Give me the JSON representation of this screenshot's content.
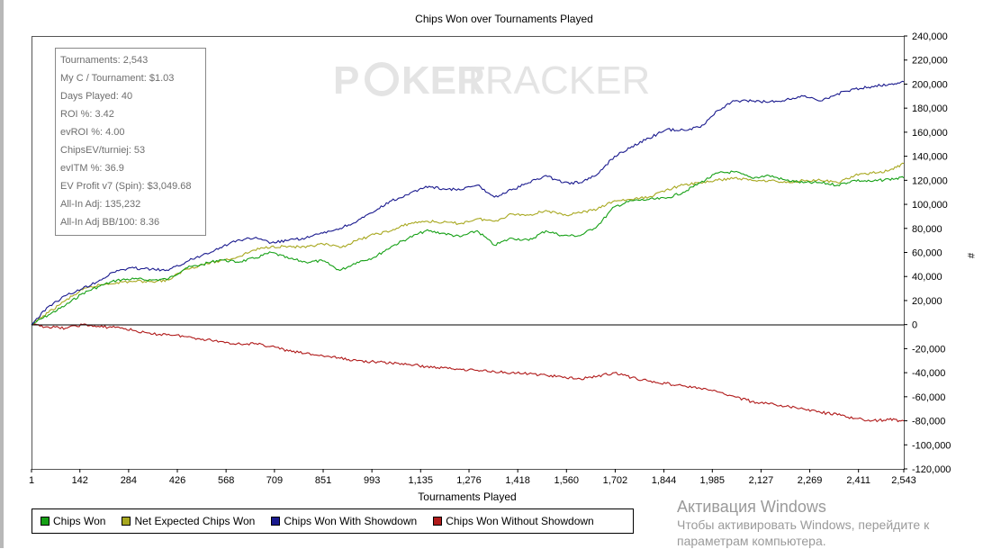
{
  "chart_data": {
    "type": "line",
    "title": "Chips Won over Tournaments Played",
    "xlabel": "Tournaments Played",
    "ylabel": "#",
    "xlim": [
      1,
      2543
    ],
    "ylim": [
      -120000,
      240000
    ],
    "x_ticks": [
      1,
      142,
      284,
      426,
      568,
      709,
      851,
      993,
      1135,
      1276,
      1418,
      1560,
      1702,
      1844,
      1985,
      2127,
      2269,
      2411,
      2543
    ],
    "x_tick_labels": [
      "1",
      "142",
      "284",
      "426",
      "568",
      "709",
      "851",
      "993",
      "1,135",
      "1,276",
      "1,418",
      "1,560",
      "1,702",
      "1,844",
      "1,985",
      "2,127",
      "2,269",
      "2,411",
      "2,543"
    ],
    "y_ticks": [
      240000,
      220000,
      200000,
      180000,
      160000,
      140000,
      120000,
      100000,
      80000,
      60000,
      40000,
      20000,
      0,
      -20000,
      -40000,
      -60000,
      -80000,
      -100000,
      -120000
    ],
    "y_tick_labels": [
      "240,000",
      "220,000",
      "200,000",
      "180,000",
      "160,000",
      "140,000",
      "120,000",
      "100,000",
      "80,000",
      "60,000",
      "40,000",
      "20,000",
      "0",
      "-20,000",
      "-40,000",
      "-60,000",
      "-80,000",
      "-100,000",
      "-120,000"
    ],
    "grid": false,
    "legend_position": "bottom",
    "series": [
      {
        "name": "Chips Won",
        "color": "#16a016",
        "x": [
          1,
          50,
          100,
          150,
          200,
          250,
          300,
          350,
          400,
          450,
          500,
          550,
          600,
          650,
          700,
          750,
          800,
          850,
          900,
          950,
          1000,
          1050,
          1100,
          1150,
          1200,
          1250,
          1300,
          1350,
          1400,
          1450,
          1500,
          1550,
          1600,
          1650,
          1700,
          1750,
          1800,
          1850,
          1900,
          1950,
          2000,
          2050,
          2100,
          2150,
          2200,
          2250,
          2300,
          2350,
          2400,
          2450,
          2500,
          2543
        ],
        "values": [
          0,
          8000,
          16000,
          26000,
          32000,
          37000,
          38000,
          37000,
          38000,
          47000,
          50000,
          54000,
          52000,
          55000,
          60000,
          55000,
          52000,
          53000,
          45000,
          52000,
          56000,
          65000,
          72000,
          78000,
          76000,
          73000,
          78000,
          66000,
          72000,
          70000,
          78000,
          74000,
          74000,
          82000,
          98000,
          103000,
          104000,
          105000,
          110000,
          118000,
          126000,
          127000,
          122000,
          124000,
          120000,
          118000,
          118000,
          116000,
          120000,
          119000,
          121000,
          122000
        ]
      },
      {
        "name": "Net Expected Chips Won",
        "color": "#a8a820",
        "x": [
          1,
          50,
          100,
          150,
          200,
          250,
          300,
          350,
          400,
          450,
          500,
          550,
          600,
          650,
          700,
          750,
          800,
          850,
          900,
          950,
          1000,
          1050,
          1100,
          1150,
          1200,
          1250,
          1300,
          1350,
          1400,
          1450,
          1500,
          1550,
          1600,
          1650,
          1700,
          1750,
          1800,
          1850,
          1900,
          1950,
          2000,
          2050,
          2100,
          2150,
          2200,
          2250,
          2300,
          2350,
          2400,
          2450,
          2500,
          2543
        ],
        "values": [
          0,
          10000,
          20000,
          29000,
          33000,
          35000,
          36000,
          36000,
          37000,
          46000,
          50000,
          53000,
          56000,
          62000,
          65000,
          65000,
          64000,
          67000,
          64000,
          70000,
          75000,
          78000,
          84000,
          86000,
          85000,
          84000,
          88000,
          86000,
          92000,
          91000,
          95000,
          91000,
          93000,
          96000,
          103000,
          104000,
          106000,
          112000,
          116000,
          118000,
          120000,
          122000,
          120000,
          120000,
          118000,
          120000,
          120000,
          118000,
          124000,
          126000,
          128000,
          134000
        ]
      },
      {
        "name": "Chips Won With Showdown",
        "color": "#1a1a8e",
        "x": [
          1,
          50,
          100,
          150,
          200,
          250,
          300,
          350,
          400,
          450,
          500,
          550,
          600,
          650,
          700,
          750,
          800,
          850,
          900,
          950,
          1000,
          1050,
          1100,
          1150,
          1200,
          1250,
          1300,
          1350,
          1400,
          1450,
          1500,
          1550,
          1600,
          1650,
          1700,
          1750,
          1800,
          1850,
          1900,
          1950,
          2000,
          2050,
          2100,
          2150,
          2200,
          2250,
          2300,
          2350,
          2400,
          2450,
          2500,
          2543
        ],
        "values": [
          0,
          15000,
          24000,
          30000,
          37000,
          45000,
          47000,
          46000,
          45000,
          52000,
          58000,
          64000,
          70000,
          72000,
          68000,
          70000,
          72000,
          76000,
          80000,
          86000,
          94000,
          103000,
          108000,
          115000,
          113000,
          112000,
          116000,
          106000,
          112000,
          118000,
          124000,
          118000,
          118000,
          125000,
          140000,
          148000,
          155000,
          162000,
          162000,
          164000,
          178000,
          186000,
          186000,
          185000,
          187000,
          190000,
          186000,
          192000,
          196000,
          198000,
          200000,
          202000
        ]
      },
      {
        "name": "Chips Won Without Showdown",
        "color": "#b01a1a",
        "x": [
          1,
          50,
          100,
          150,
          200,
          250,
          300,
          350,
          400,
          450,
          500,
          550,
          600,
          650,
          700,
          750,
          800,
          850,
          900,
          950,
          1000,
          1050,
          1100,
          1150,
          1200,
          1250,
          1300,
          1350,
          1400,
          1450,
          1500,
          1550,
          1600,
          1650,
          1700,
          1750,
          1800,
          1850,
          1900,
          1950,
          2000,
          2050,
          2100,
          2150,
          2200,
          2250,
          2300,
          2350,
          2400,
          2450,
          2500,
          2543
        ],
        "values": [
          0,
          -2000,
          -3000,
          0,
          -2000,
          -2000,
          -5000,
          -8000,
          -8000,
          -10000,
          -12000,
          -14000,
          -16000,
          -16000,
          -18000,
          -22000,
          -24000,
          -26000,
          -28000,
          -30000,
          -31000,
          -32000,
          -33000,
          -35000,
          -36000,
          -37000,
          -38000,
          -39000,
          -40000,
          -41000,
          -42000,
          -44000,
          -45000,
          -43000,
          -40000,
          -44000,
          -47000,
          -49000,
          -51000,
          -53000,
          -56000,
          -60000,
          -64000,
          -66000,
          -68000,
          -70000,
          -73000,
          -75000,
          -78000,
          -80000,
          -79000,
          -80000
        ]
      }
    ]
  },
  "stats": [
    "Tournaments: 2,543",
    "My C / Tournament: $1.03",
    "Days Played: 40",
    "ROI %: 3.42",
    "evROI %: 4.00",
    "ChipsEV/turniej: 53",
    "evITM %: 36.9",
    "EV Profit v7 (Spin): $3,049.68",
    "All-In Adj: 135,232",
    "All-In Adj BB/100: 8.36"
  ],
  "watermark": {
    "text_1": "P",
    "text_2": "KER",
    "text_3": "TRACKER"
  },
  "legend": [
    {
      "label": "Chips Won",
      "color": "#16a016"
    },
    {
      "label": "Net Expected Chips Won",
      "color": "#a8a820"
    },
    {
      "label": "Chips Won With Showdown",
      "color": "#1a1a8e"
    },
    {
      "label": "Chips Won Without Showdown",
      "color": "#b01a1a"
    }
  ],
  "windows_activation": {
    "title": "Активация Windows",
    "line1": "Чтобы активировать Windows, перейдите к",
    "line2": "параметрам компьютера."
  }
}
